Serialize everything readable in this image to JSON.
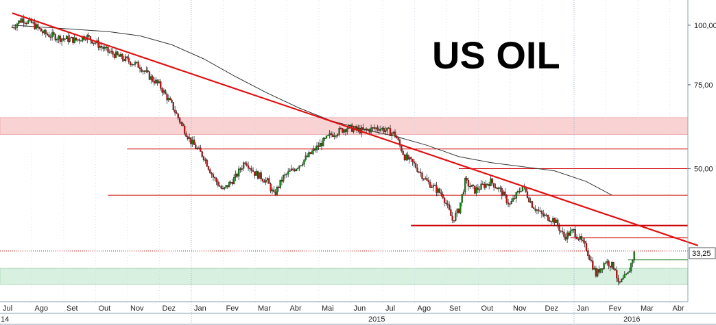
{
  "chart_data": {
    "type": "candlestick",
    "title": "US OIL",
    "y_scale": "log",
    "ylim": [
      27,
      110
    ],
    "y_ticks": [
      {
        "value": 100,
        "label": "100,00"
      },
      {
        "value": 75,
        "label": "75,00"
      },
      {
        "value": 50,
        "label": "50,00"
      }
    ],
    "current_price": {
      "value": 33.25,
      "label": "33,25"
    },
    "month_labels": [
      {
        "label": "Jul",
        "month": 0
      },
      {
        "label": "Ago",
        "month": 1
      },
      {
        "label": "Set",
        "month": 2
      },
      {
        "label": "Out",
        "month": 3
      },
      {
        "label": "Nov",
        "month": 4
      },
      {
        "label": "Dez",
        "month": 5
      },
      {
        "label": "Jan",
        "month": 6
      },
      {
        "label": "Fev",
        "month": 7
      },
      {
        "label": "Mar",
        "month": 8
      },
      {
        "label": "Abr",
        "month": 9
      },
      {
        "label": "Mai",
        "month": 10
      },
      {
        "label": "Jun",
        "month": 11
      },
      {
        "label": "Jul",
        "month": 12
      },
      {
        "label": "Ago",
        "month": 13
      },
      {
        "label": "Set",
        "month": 14
      },
      {
        "label": "Out",
        "month": 15
      },
      {
        "label": "Nov",
        "month": 16
      },
      {
        "label": "Dez",
        "month": 17
      },
      {
        "label": "Jan",
        "month": 18
      },
      {
        "label": "Fev",
        "month": 19
      },
      {
        "label": "Mar",
        "month": 20
      },
      {
        "label": "Abr",
        "month": 21
      }
    ],
    "year_labels": [
      {
        "label": "14",
        "month": -0.4
      },
      {
        "label": "2015",
        "month": 6
      },
      {
        "label": "2016",
        "month": 18
      }
    ],
    "price_path": [
      [
        0,
        99
      ],
      [
        0.3,
        103
      ],
      [
        0.6,
        101
      ],
      [
        1,
        96
      ],
      [
        1.5,
        94
      ],
      [
        2,
        93
      ],
      [
        2.3,
        95
      ],
      [
        2.6,
        92
      ],
      [
        3,
        88
      ],
      [
        3.5,
        85
      ],
      [
        4,
        82
      ],
      [
        4.3,
        78
      ],
      [
        4.6,
        75
      ],
      [
        5,
        68
      ],
      [
        5.3,
        62
      ],
      [
        5.6,
        57
      ],
      [
        6,
        53
      ],
      [
        6.3,
        48
      ],
      [
        6.6,
        45
      ],
      [
        7,
        48
      ],
      [
        7.3,
        52
      ],
      [
        7.6,
        49
      ],
      [
        8,
        47
      ],
      [
        8.2,
        44
      ],
      [
        8.5,
        48
      ],
      [
        9,
        51
      ],
      [
        9.5,
        55
      ],
      [
        10,
        59
      ],
      [
        10.5,
        61
      ],
      [
        11,
        60
      ],
      [
        11.5,
        61
      ],
      [
        12,
        59
      ],
      [
        12.3,
        53
      ],
      [
        12.6,
        51
      ],
      [
        13,
        47
      ],
      [
        13.5,
        44
      ],
      [
        13.8,
        39
      ],
      [
        14,
        41
      ],
      [
        14.2,
        47
      ],
      [
        14.5,
        45
      ],
      [
        15,
        47
      ],
      [
        15.3,
        45
      ],
      [
        15.6,
        42
      ],
      [
        16,
        46
      ],
      [
        16.3,
        42
      ],
      [
        16.6,
        40
      ],
      [
        17,
        39
      ],
      [
        17.3,
        36
      ],
      [
        17.6,
        37
      ],
      [
        18,
        34
      ],
      [
        18.3,
        30
      ],
      [
        18.6,
        32
      ],
      [
        18.9,
        31
      ],
      [
        19,
        28.5
      ],
      [
        19.3,
        30
      ],
      [
        19.5,
        33.25
      ]
    ],
    "moving_average": [
      [
        0,
        100
      ],
      [
        1,
        99
      ],
      [
        2,
        98
      ],
      [
        3,
        97
      ],
      [
        4,
        95
      ],
      [
        5,
        91
      ],
      [
        6,
        85
      ],
      [
        7,
        78
      ],
      [
        8,
        72
      ],
      [
        9,
        67
      ],
      [
        10,
        63
      ],
      [
        11,
        60.5
      ],
      [
        12,
        58.5
      ],
      [
        13,
        56
      ],
      [
        14,
        53
      ],
      [
        15,
        51.5
      ],
      [
        16,
        50.5
      ],
      [
        17,
        49.5
      ],
      [
        18,
        47
      ],
      [
        18.8,
        44
      ]
    ],
    "trendline": {
      "start": [
        0,
        106
      ],
      "end": [
        21.5,
        34.5
      ]
    },
    "horizontal_lines": [
      {
        "value": 55,
        "from_month": 3.6
      },
      {
        "value": 50,
        "from_month": 14
      },
      {
        "value": 44,
        "from_month": 3
      },
      {
        "value": 38,
        "from_month": 12.5,
        "thick": true
      },
      {
        "value": 35.8,
        "from_month": 17.5
      },
      {
        "value": 33.6,
        "from_month": 0,
        "dotted": true
      }
    ],
    "zones": [
      {
        "from": 59,
        "to": 64,
        "color": "#f9d3d3"
      },
      {
        "from": 28.6,
        "to": 30.9,
        "color": "#d7f0df"
      }
    ],
    "green_marker": {
      "value": 32.2,
      "from_month": 19.3
    },
    "colors": {
      "trend": "#e01010",
      "levels": "#cc0000",
      "moving_average": "#333333",
      "candle_up": "#0a8a0a",
      "candle_down": "#cc1111",
      "title": "#000000"
    }
  }
}
